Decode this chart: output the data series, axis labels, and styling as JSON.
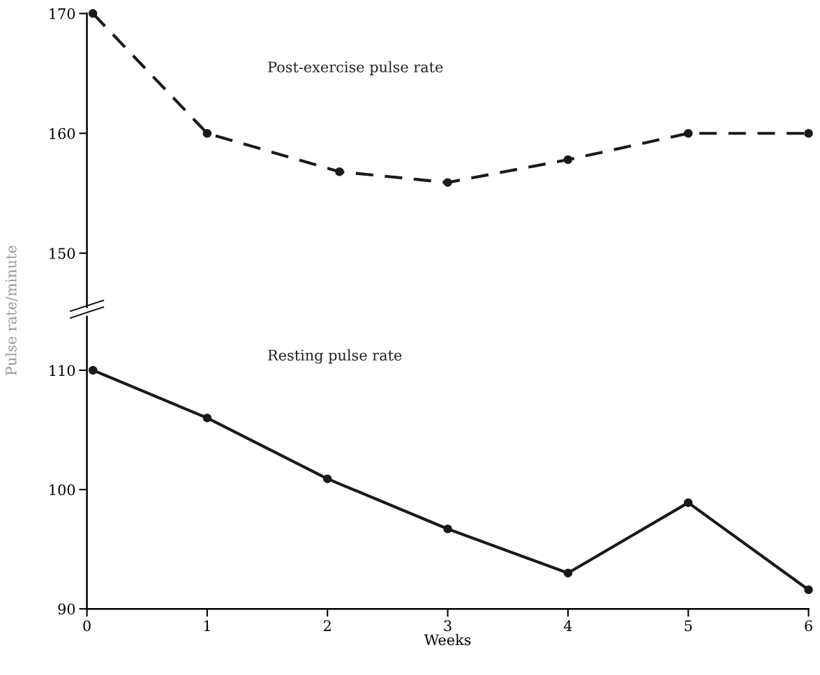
{
  "chart_data": [
    {
      "type": "line",
      "ylabel": "Pulse rate/minute",
      "xlim": [
        0,
        6
      ],
      "ylim": [
        145.5,
        170
      ],
      "yticks": [
        150,
        160,
        170
      ],
      "tick_labels": "y",
      "grid": false,
      "legend": false,
      "marker": "circle",
      "series": [
        {
          "name": "Post-exercise pulse rate",
          "color": "#1a1a1a",
          "line_style": "dashed",
          "x": [
            0.05,
            1,
            2.1,
            3,
            4,
            5,
            6
          ],
          "values": [
            170,
            160,
            156.8,
            155.9,
            157.8,
            160,
            160
          ]
        }
      ]
    },
    {
      "type": "line",
      "xlabel": "Weeks",
      "xlim": [
        0,
        6
      ],
      "xticks": [
        0,
        1,
        2,
        3,
        4,
        5,
        6
      ],
      "ylim": [
        90,
        114.5
      ],
      "yticks": [
        90,
        100,
        110
      ],
      "grid": false,
      "legend": false,
      "marker": "circle",
      "series": [
        {
          "name": "Resting pulse rate",
          "color": "#1a1a1a",
          "line_style": "solid",
          "x": [
            0.05,
            1,
            2,
            3,
            4,
            5,
            6
          ],
          "values": [
            110,
            106,
            100.9,
            96.7,
            93.0,
            98.9,
            91.6
          ]
        }
      ]
    }
  ]
}
